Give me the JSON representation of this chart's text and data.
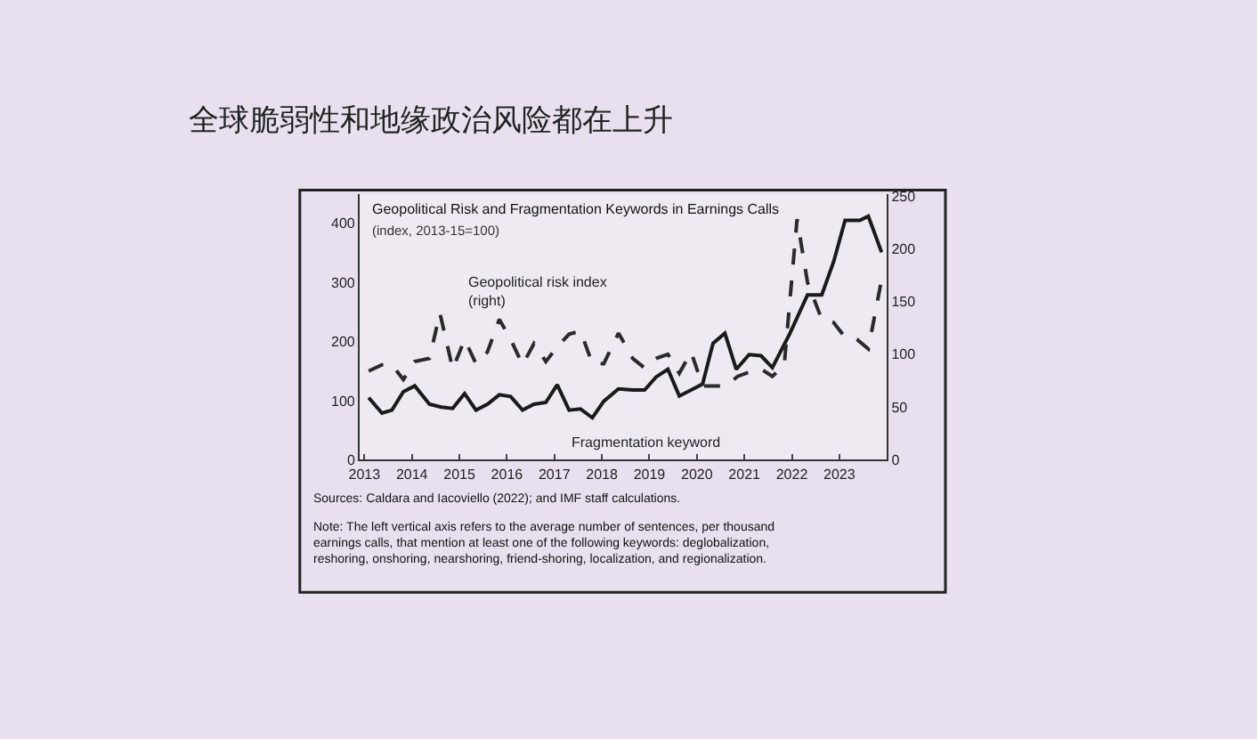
{
  "chart_data": {
    "type": "line",
    "title": "全球脆弱性和地缘政治风险都在上升",
    "subtitle": "Geopolitical Risk and Fragmentation Keywords in Earnings Calls",
    "annotations": [
      "(index, 2013-15=100)",
      "Sources: Caldara and Iacoviello (2022); and IMF staff calculations.",
      "Note: The left vertical axis refers to the average number of sentences, per thousand earnings calls, that mention at least one of the following keywords: deglobalization, reshoring, onshoring, nearshoring, friend-shoring, localization, and regionalization."
    ],
    "xlim": [
      2012.9,
      2024.0
    ],
    "xticks": [
      2013,
      2014,
      2015,
      2016,
      2017,
      2018,
      2019,
      2020,
      2021,
      2022,
      2023
    ],
    "ylim": [
      0,
      450
    ],
    "yticks": [
      0,
      100,
      200,
      300,
      400
    ],
    "y2lim": [
      0,
      252
    ],
    "y2ticks": [
      0,
      50,
      100,
      150,
      200,
      250
    ],
    "grid": false,
    "legend": false,
    "marker": "none",
    "series": [
      {
        "name": "Fragmentation keyword",
        "color": "#1a1a1a",
        "line_style": "solid",
        "axis": "y",
        "x": [
          2013.09,
          2013.37,
          2013.58,
          2013.82,
          2014.06,
          2014.37,
          2014.62,
          2014.86,
          2015.11,
          2015.35,
          2015.59,
          2015.84,
          2016.08,
          2016.33,
          2016.57,
          2016.82,
          2017.06,
          2017.31,
          2017.55,
          2017.8,
          2018.04,
          2018.35,
          2018.65,
          2018.9,
          2019.14,
          2019.39,
          2019.63,
          2019.88,
          2020.12,
          2020.34,
          2020.59,
          2020.83,
          2021.1,
          2021.35,
          2021.59,
          2021.96,
          2022.33,
          2022.63,
          2022.88,
          2023.12,
          2023.43,
          2023.61,
          2023.89
        ],
        "values": [
          105,
          79,
          84,
          115,
          125,
          94,
          89,
          87,
          112,
          84,
          94,
          110,
          107,
          84,
          94,
          97,
          127,
          84,
          86,
          71,
          99,
          120,
          118,
          118,
          140,
          153,
          108,
          118,
          128,
          197,
          214,
          153,
          178,
          176,
          156,
          214,
          279,
          279,
          335,
          405,
          405,
          412,
          351
        ]
      },
      {
        "name": "Geopolitical risk index (right)",
        "color": "#2a2a2a",
        "line_style": "dashed",
        "axis": "y2",
        "x": [
          2013.09,
          2013.37,
          2013.58,
          2013.82,
          2014.06,
          2014.37,
          2014.59,
          2014.86,
          2015.11,
          2015.35,
          2015.59,
          2015.84,
          2016.08,
          2016.33,
          2016.57,
          2016.82,
          2017.06,
          2017.31,
          2017.55,
          2017.8,
          2018.04,
          2018.35,
          2018.65,
          2018.9,
          2019.14,
          2019.39,
          2019.63,
          2019.88,
          2020.12,
          2020.37,
          2020.61,
          2020.86,
          2021.1,
          2021.35,
          2021.59,
          2021.84,
          2022.11,
          2022.33,
          2022.63,
          2022.88,
          2023.12,
          2023.37,
          2023.61,
          2023.89
        ],
        "values": [
          84,
          90,
          90,
          76,
          93,
          96,
          139,
          86,
          114,
          91,
          102,
          133,
          114,
          90,
          110,
          93,
          107,
          119,
          122,
          91,
          91,
          120,
          96,
          87,
          96,
          100,
          82,
          102,
          70,
          70,
          70,
          79,
          83,
          86,
          79,
          90,
          228,
          168,
          133,
          130,
          116,
          114,
          105,
          171
        ]
      }
    ]
  }
}
